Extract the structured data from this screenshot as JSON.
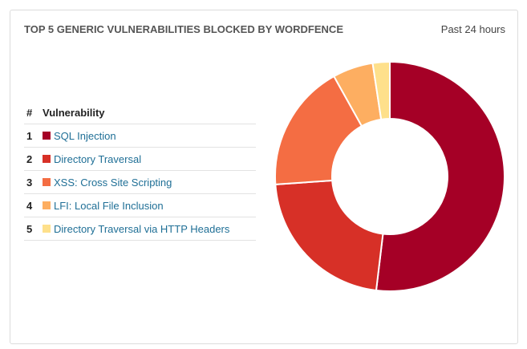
{
  "header": {
    "title": "TOP 5 GENERIC VULNERABILITIES BLOCKED BY WORDFENCE",
    "period": "Past 24 hours"
  },
  "chart_data": {
    "type": "donut",
    "columns": [
      "#",
      "Vulnerability"
    ],
    "ranks": [
      1,
      2,
      3,
      4,
      5
    ],
    "categories": [
      "SQL Injection",
      "Directory Traversal",
      "XSS: Cross Site Scripting",
      "LFI: Local File Inclusion",
      "Directory Traversal via HTTP Headers"
    ],
    "values": [
      51.9,
      22,
      18,
      5.7,
      2.4
    ],
    "colors": [
      "#a50026",
      "#d73027",
      "#f46d43",
      "#fdae61",
      "#fee08b"
    ]
  }
}
